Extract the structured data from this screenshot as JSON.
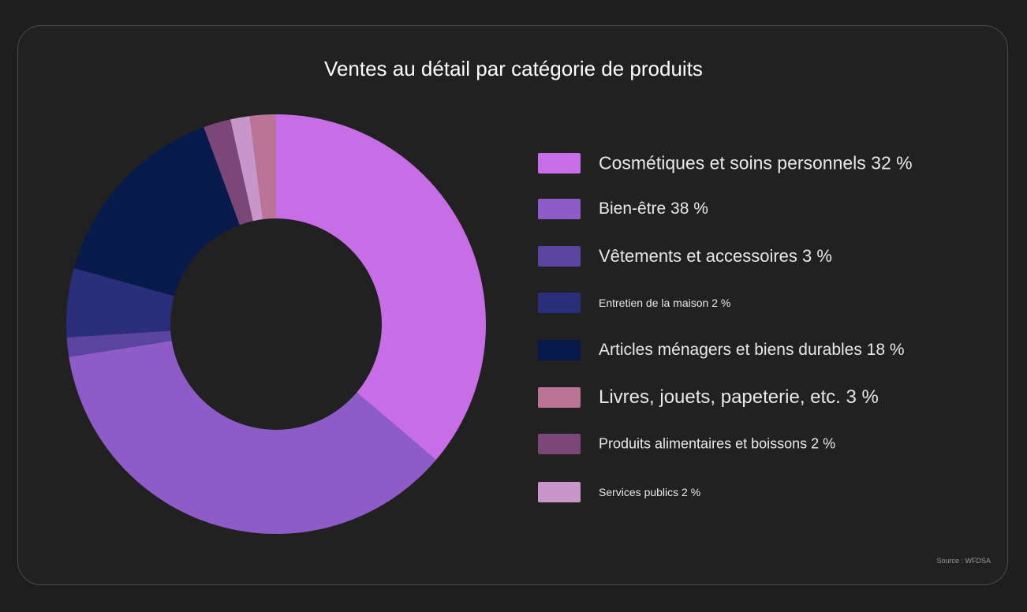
{
  "chart_data": {
    "type": "pie",
    "title": "Ventes au détail par catégorie de produits",
    "source": "Source : WFDSA",
    "legend_position": "right",
    "slices": [
      {
        "label": "Cosmétiques et soins personnels 32 %",
        "value": 32,
        "color": "#c76ee6"
      },
      {
        "label": "Bien-être 38 %",
        "value": 38,
        "color": "#8e5cc8"
      },
      {
        "label": "Vêtements et accessoires 3 %",
        "value": 3,
        "color": "#5a44a0"
      },
      {
        "label": "Entretien de la maison 2 %",
        "value": 2,
        "color": "#2b2e7a"
      },
      {
        "label": "Articles ménagers et biens durables 18 %",
        "value": 18,
        "color": "#071a4c"
      },
      {
        "label": "Livres, jouets, papeterie, etc. 3 %",
        "value": 3,
        "color": "#bb7396"
      },
      {
        "label": "Produits alimentaires et boissons 2 %",
        "value": 2,
        "color": "#7b4678"
      },
      {
        "label": "Services publics 2 %",
        "value": 2,
        "color": "#c996c9"
      }
    ]
  }
}
